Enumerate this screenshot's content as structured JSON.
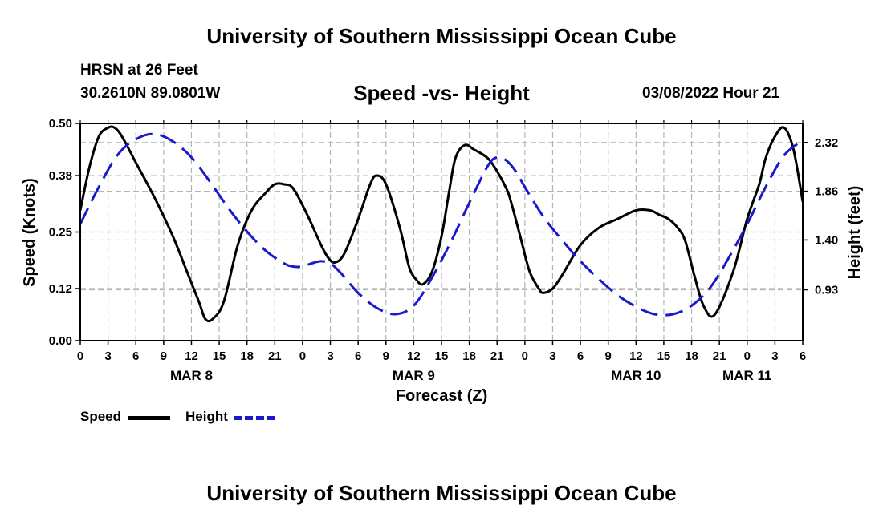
{
  "header": {
    "title": "University of Southern Mississippi Ocean Cube",
    "station": "HRSN at 26 Feet",
    "coordinates": "30.2610N  89.0801W",
    "subtitle": "Speed -vs- Height",
    "datetime": "03/08/2022 Hour 21",
    "footer_title": "University of Southern Mississippi Ocean Cube"
  },
  "legend": {
    "speed_label": "Speed",
    "height_label": "Height"
  },
  "colors": {
    "speed": "#000000",
    "height": "#1a1acc",
    "grid": "#b4b4b4"
  },
  "chart_data": {
    "type": "line",
    "xlabel": "Forecast (Z)",
    "ylabel_left": "Speed (Knots)",
    "ylabel_right": "Height (feet)",
    "x_hours_range": [
      0,
      78
    ],
    "x_tick_step_hours": 3,
    "x_tick_labels": [
      "0",
      "3",
      "6",
      "9",
      "12",
      "15",
      "18",
      "21",
      "0",
      "3",
      "6",
      "9",
      "12",
      "15",
      "18",
      "21",
      "0",
      "3",
      "6",
      "9",
      "12",
      "15",
      "18",
      "21",
      "0",
      "3",
      "6"
    ],
    "date_labels": [
      {
        "label": "MAR 8",
        "hour": 12
      },
      {
        "label": "MAR 9",
        "hour": 36
      },
      {
        "label": "MAR 10",
        "hour": 60
      },
      {
        "label": "MAR 11",
        "hour": 72
      }
    ],
    "left_axis": {
      "range": [
        0,
        0.5
      ],
      "ticks": [
        0.0,
        0.12,
        0.25,
        0.38,
        0.5
      ],
      "tick_labels": [
        "0.00",
        "0.12",
        "0.25",
        "0.38",
        "0.50"
      ]
    },
    "right_axis": {
      "range": [
        0.45,
        2.5
      ],
      "ticks": [
        0.93,
        1.4,
        1.86,
        2.32
      ],
      "tick_labels": [
        "0.93",
        "1.40",
        "1.86",
        "2.32"
      ]
    },
    "series": [
      {
        "name": "Speed",
        "axis": "left",
        "style": "solid",
        "x": [
          0,
          1,
          2,
          3,
          3.7,
          4.5,
          6,
          8,
          10,
          11.5,
          12.8,
          13.5,
          14.3,
          15.5,
          17,
          18.5,
          20,
          21,
          22,
          23,
          24.5,
          26,
          26.8,
          27.5,
          28.5,
          30,
          31.3,
          32,
          33,
          34.5,
          35.5,
          36.3,
          37,
          38,
          39,
          39.8,
          40.5,
          41.5,
          42.5,
          44,
          45,
          46,
          46.5,
          47.5,
          48.5,
          49.5,
          50,
          51,
          52,
          54,
          56,
          58,
          60,
          61.5,
          62.5,
          63.5,
          64.5,
          65.3,
          66.3,
          67.3,
          68.5,
          70.5,
          72,
          73.3,
          74,
          75,
          76,
          77,
          78
        ],
        "y": [
          0.3,
          0.4,
          0.47,
          0.49,
          0.49,
          0.47,
          0.41,
          0.33,
          0.24,
          0.16,
          0.09,
          0.05,
          0.05,
          0.09,
          0.22,
          0.3,
          0.34,
          0.36,
          0.36,
          0.35,
          0.29,
          0.22,
          0.19,
          0.18,
          0.2,
          0.28,
          0.36,
          0.38,
          0.36,
          0.26,
          0.17,
          0.14,
          0.13,
          0.16,
          0.24,
          0.34,
          0.42,
          0.45,
          0.44,
          0.42,
          0.39,
          0.35,
          0.32,
          0.24,
          0.16,
          0.12,
          0.11,
          0.12,
          0.15,
          0.22,
          0.26,
          0.28,
          0.3,
          0.3,
          0.29,
          0.28,
          0.26,
          0.23,
          0.15,
          0.08,
          0.06,
          0.16,
          0.28,
          0.36,
          0.42,
          0.47,
          0.49,
          0.44,
          0.32
        ]
      },
      {
        "name": "Height",
        "axis": "right",
        "style": "dashed",
        "x": [
          0,
          2,
          4,
          6,
          8,
          10,
          12,
          14,
          16,
          18,
          20,
          22,
          23,
          24,
          25,
          26,
          27,
          28,
          29,
          30,
          32,
          34,
          36,
          38,
          40,
          42,
          44,
          45,
          46,
          47,
          48,
          50,
          52,
          54,
          56,
          58,
          60,
          62,
          64,
          66,
          68,
          70,
          72,
          74,
          76,
          78
        ],
        "y": [
          1.55,
          1.9,
          2.2,
          2.35,
          2.4,
          2.33,
          2.18,
          1.95,
          1.7,
          1.48,
          1.3,
          1.18,
          1.15,
          1.15,
          1.18,
          1.2,
          1.18,
          1.1,
          1.0,
          0.9,
          0.76,
          0.7,
          0.78,
          1.05,
          1.38,
          1.75,
          2.1,
          2.18,
          2.15,
          2.05,
          1.9,
          1.62,
          1.4,
          1.2,
          1.03,
          0.88,
          0.77,
          0.7,
          0.7,
          0.78,
          0.95,
          1.23,
          1.55,
          1.9,
          2.2,
          2.34
        ]
      }
    ]
  }
}
